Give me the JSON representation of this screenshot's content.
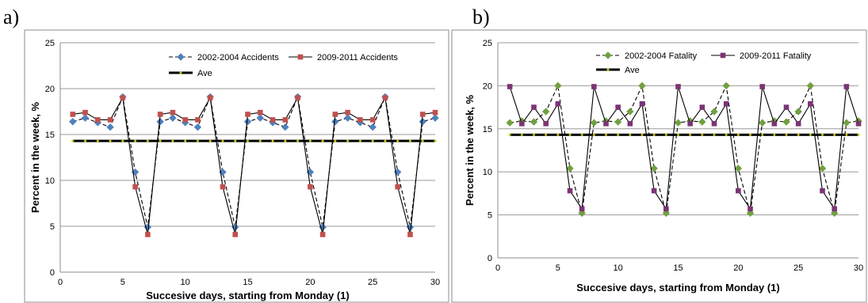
{
  "panel_labels": [
    "a)",
    "b)"
  ],
  "chart_data": [
    {
      "type": "line",
      "panel": "a)",
      "xlabel": "Succesive days, starting from Monday  (1)",
      "ylabel": "Percent  in the week,  %",
      "xlim": [
        0,
        30
      ],
      "ylim": [
        0,
        25
      ],
      "xticks": [
        0,
        5,
        10,
        15,
        20,
        25,
        30
      ],
      "yticks": [
        0,
        5,
        10,
        15,
        20,
        25
      ],
      "grid": "horizontal",
      "legend_position": "top",
      "x": [
        1,
        2,
        3,
        4,
        5,
        6,
        7,
        8,
        9,
        10,
        11,
        12,
        13,
        14,
        15,
        16,
        17,
        18,
        19,
        20,
        21,
        22,
        23,
        24,
        25,
        26,
        27,
        28,
        29,
        30
      ],
      "series": [
        {
          "name": "2002-2004 Accidents",
          "color": "#4f81bd",
          "style": "dashed",
          "marker": "diamond",
          "values": [
            16.4,
            16.8,
            16.3,
            15.8,
            19.1,
            10.9,
            4.9,
            16.4,
            16.8,
            16.3,
            15.8,
            19.1,
            10.9,
            4.9,
            16.4,
            16.8,
            16.3,
            15.8,
            19.1,
            10.9,
            4.9,
            16.4,
            16.8,
            16.3,
            15.8,
            19.1,
            10.9,
            4.9,
            16.4,
            16.8
          ]
        },
        {
          "name": "2009-2011 Accidents",
          "color": "#c0504d",
          "style": "solid",
          "marker": "square",
          "values": [
            17.2,
            17.4,
            16.6,
            16.6,
            19.0,
            9.3,
            4.1,
            17.2,
            17.4,
            16.6,
            16.6,
            19.0,
            9.3,
            4.1,
            17.2,
            17.4,
            16.6,
            16.6,
            19.0,
            9.3,
            4.1,
            17.2,
            17.4,
            16.6,
            16.6,
            19.0,
            9.3,
            4.1,
            17.2,
            17.4
          ]
        },
        {
          "name": "Ave",
          "color": "#000000",
          "style": "thick",
          "marker": "dot",
          "values": [
            14.3,
            14.3,
            14.3,
            14.3,
            14.3,
            14.3,
            14.3,
            14.3,
            14.3,
            14.3,
            14.3,
            14.3,
            14.3,
            14.3,
            14.3,
            14.3,
            14.3,
            14.3,
            14.3,
            14.3,
            14.3,
            14.3,
            14.3,
            14.3,
            14.3,
            14.3,
            14.3,
            14.3,
            14.3,
            14.3
          ]
        }
      ]
    },
    {
      "type": "line",
      "panel": "b)",
      "xlabel": "Succesive days, starting from Monday (1)",
      "ylabel": "Percent  in the week,  %",
      "xlim": [
        0,
        30
      ],
      "ylim": [
        0,
        25
      ],
      "xticks": [
        0,
        5,
        10,
        15,
        20,
        25,
        30
      ],
      "yticks": [
        0,
        5,
        10,
        15,
        20,
        25
      ],
      "grid": "horizontal",
      "legend_position": "top",
      "x": [
        1,
        2,
        3,
        4,
        5,
        6,
        7,
        8,
        9,
        10,
        11,
        12,
        13,
        14,
        15,
        16,
        17,
        18,
        19,
        20,
        21,
        22,
        23,
        24,
        25,
        26,
        27,
        28,
        29,
        30
      ],
      "series": [
        {
          "name": "2002-2004 Fatality",
          "color": "#70a040",
          "style": "dashed",
          "marker": "diamond",
          "values": [
            15.7,
            15.9,
            15.8,
            17.0,
            20.0,
            10.4,
            5.2,
            15.7,
            15.9,
            15.8,
            17.0,
            20.0,
            10.4,
            5.2,
            15.7,
            15.9,
            15.8,
            17.0,
            20.0,
            10.4,
            5.2,
            15.7,
            15.9,
            15.8,
            17.0,
            20.0,
            10.4,
            5.2,
            15.7,
            15.9
          ]
        },
        {
          "name": "2009-2011 Fatality",
          "color": "#7b3575",
          "style": "solid",
          "marker": "square",
          "values": [
            19.9,
            15.6,
            17.5,
            15.6,
            17.9,
            7.8,
            5.7,
            19.9,
            15.6,
            17.5,
            15.6,
            17.9,
            7.8,
            5.7,
            19.9,
            15.6,
            17.5,
            15.6,
            17.9,
            7.8,
            5.7,
            19.9,
            15.6,
            17.5,
            15.6,
            17.9,
            7.8,
            5.7,
            19.9,
            15.6
          ]
        },
        {
          "name": "Ave",
          "color": "#000000",
          "style": "thick",
          "marker": "dot",
          "values": [
            14.3,
            14.3,
            14.3,
            14.3,
            14.3,
            14.3,
            14.3,
            14.3,
            14.3,
            14.3,
            14.3,
            14.3,
            14.3,
            14.3,
            14.3,
            14.3,
            14.3,
            14.3,
            14.3,
            14.3,
            14.3,
            14.3,
            14.3,
            14.3,
            14.3,
            14.3,
            14.3,
            14.3,
            14.3,
            14.3
          ]
        }
      ]
    }
  ]
}
